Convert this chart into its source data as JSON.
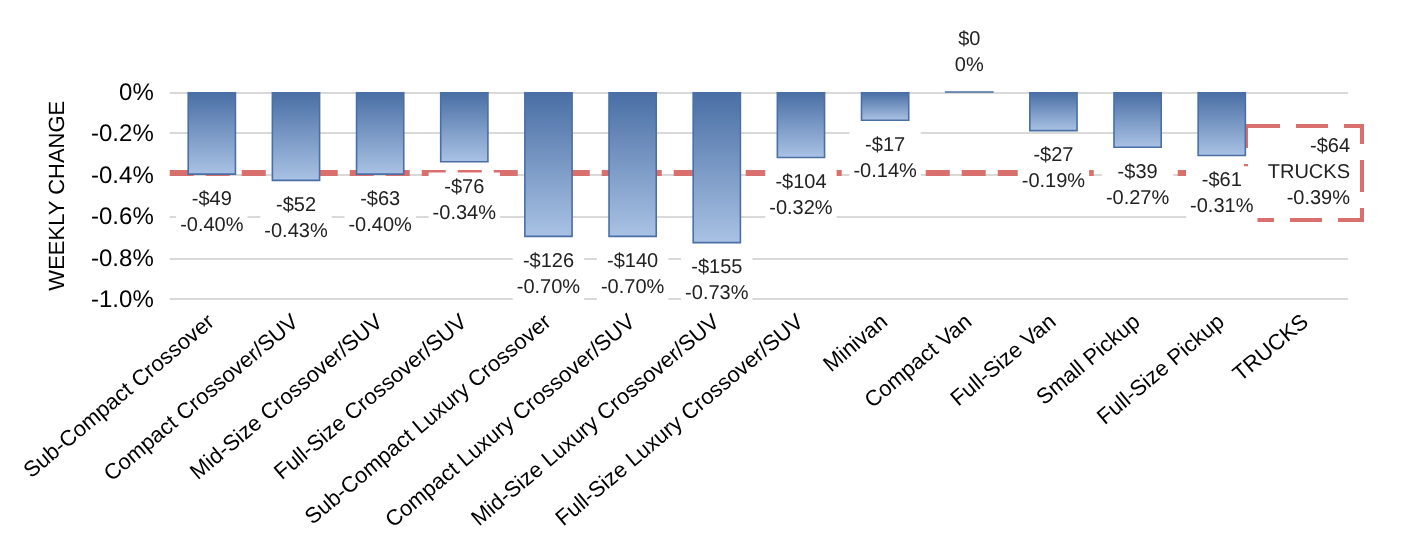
{
  "chart_data": {
    "type": "bar",
    "ylabel": "WEEKLY CHANGE",
    "categories": [
      "Sub-Compact Crossover",
      "Compact Crossover/SUV",
      "Mid-Size Crossover/SUV",
      "Full-Size Crossover/SUV",
      "Sub-Compact Luxury Crossover",
      "Compact Luxury Crossover/SUV",
      "Mid-Size Luxury Crossover/SUV",
      "Full-Size Luxury Crossover/SUV",
      "Minivan",
      "Compact Van",
      "Full-Size Van",
      "Small Pickup",
      "Full-Size Pickup",
      "TRUCKS"
    ],
    "values": [
      -0.4,
      -0.43,
      -0.4,
      -0.34,
      -0.7,
      -0.7,
      -0.73,
      -0.32,
      -0.14,
      0,
      -0.19,
      -0.27,
      -0.31,
      null
    ],
    "value_labels": [
      "-$49\n-0.40%",
      "-$52\n-0.43%",
      "-$63\n-0.40%",
      "-$76\n-0.34%",
      "-$126\n-0.70%",
      "-$140\n-0.70%",
      "-$155\n-0.73%",
      "-$104\n-0.32%",
      "-$17\n-0.14%",
      "$0\n0%",
      "-$27\n-0.19%",
      "-$39\n-0.27%",
      "-$61\n-0.31%",
      null
    ],
    "color": "#4a6fa5",
    "ylim": [
      -1.0,
      0
    ],
    "yticks": [
      {
        "value": 0,
        "label": "0%"
      },
      {
        "value": -0.2,
        "label": "-0.2%"
      },
      {
        "value": -0.4,
        "label": "-0.4%"
      },
      {
        "value": -0.6,
        "label": "-0.6%"
      },
      {
        "value": -0.8,
        "label": "-0.8%"
      },
      {
        "value": -1.0,
        "label": "-1.0%"
      }
    ],
    "grid": "y",
    "ref_lines": [
      {
        "axis": "y",
        "value": -0.39,
        "label": "-$64\nTRUCKS\n-0.39%",
        "color": "#d9706e",
        "line_style": "dashed"
      }
    ]
  }
}
